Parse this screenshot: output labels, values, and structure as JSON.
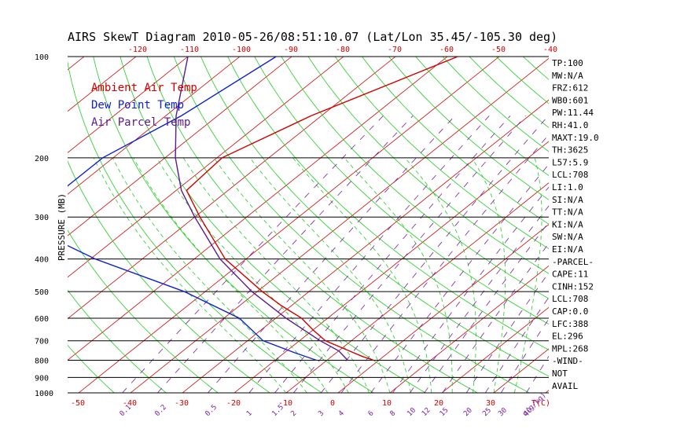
{
  "title": "AIRS SkewT Diagram 2010-05-26/08:51:10.07 (Lat/Lon 35.45/-105.30 deg)",
  "colors": {
    "ambient": "#d00000",
    "dewpoint": "#1020d0",
    "parcel": "#5a1a8a",
    "dry_adiabat": "#d00000",
    "moist_adiabat": "#22cc22",
    "mixing_ratio": "#7a1fa2",
    "isobar": "#000000"
  },
  "legend": [
    {
      "label": "Ambient Air Temp",
      "color": "#d00000"
    },
    {
      "label": "Dew Point Temp",
      "color": "#1020d0"
    },
    {
      "label": "Air Parcel Temp",
      "color": "#5a1a8a"
    }
  ],
  "indices": [
    "TP:100",
    "MW:N/A",
    "FRZ:612",
    "WB0:601",
    "PW:11.44",
    "RH:41.0",
    "MAXT:19.0",
    "TH:3625",
    "L57:5.9",
    "LCL:708",
    "LI:1.0",
    "SI:N/A",
    "TT:N/A",
    "KI:N/A",
    "SW:N/A",
    "EI:N/A",
    "-PARCEL-",
    "CAPE:11",
    "CINH:152",
    "LCL:708",
    "CAP:0.0",
    "LFC:388",
    "EL:296",
    "MPL:268",
    "-WIND-",
    "NOT",
    "AVAIL"
  ],
  "chart_data": {
    "type": "line",
    "title": "AIRS SkewT Diagram 2010-05-26/08:51:10.07 (Lat/Lon 35.45/-105.30 deg)",
    "ylabel": "PRESSURE (MB)",
    "y_scale": "log-pressure",
    "ylim": [
      1000,
      100
    ],
    "pressure_ticks": [
      "100",
      "200",
      "300",
      "400",
      "500",
      "600",
      "700",
      "800",
      "900",
      "1000"
    ],
    "pressure_values": [
      100,
      200,
      300,
      400,
      500,
      600,
      700,
      800,
      900,
      1000
    ],
    "top_temp_ticks": [
      "-120",
      "-110",
      "-100",
      "-90",
      "-80",
      "-70",
      "-60",
      "-50",
      "-40"
    ],
    "bottom_temp_ticks": [
      "-50",
      "-40",
      "-30",
      "-20",
      "-10",
      "0",
      "10",
      "20",
      "30",
      "T(C)"
    ],
    "mixing_ratio_ticks": [
      "0.1",
      "0.2",
      "0.5",
      "1",
      "1.5",
      "2",
      "3",
      "4",
      "6",
      "8",
      "10",
      "12",
      "15",
      "20",
      "25",
      "30",
      "40",
      "q(g/kg)"
    ],
    "series": [
      {
        "name": "Ambient Air Temp",
        "points": [
          [
            100,
            -58
          ],
          [
            150,
            -72
          ],
          [
            200,
            -79
          ],
          [
            250,
            -78
          ],
          [
            300,
            -69
          ],
          [
            400,
            -54
          ],
          [
            500,
            -39
          ],
          [
            550,
            -32
          ],
          [
            600,
            -25
          ],
          [
            650,
            -20
          ],
          [
            700,
            -15
          ],
          [
            750,
            -8
          ],
          [
            780,
            -4
          ],
          [
            800,
            -1
          ]
        ]
      },
      {
        "name": "Dew Point Temp",
        "points": [
          [
            100,
            -93
          ],
          [
            150,
            -97
          ],
          [
            200,
            -102
          ],
          [
            250,
            -102
          ],
          [
            300,
            -106
          ],
          [
            400,
            -79
          ],
          [
            500,
            -54
          ],
          [
            600,
            -37
          ],
          [
            700,
            -27
          ],
          [
            760,
            -18
          ],
          [
            800,
            -12
          ]
        ]
      },
      {
        "name": "Air Parcel Temp",
        "points": [
          [
            100,
            -110
          ],
          [
            150,
            -98
          ],
          [
            200,
            -88
          ],
          [
            250,
            -79
          ],
          [
            300,
            -70
          ],
          [
            400,
            -55
          ],
          [
            500,
            -41
          ],
          [
            600,
            -28
          ],
          [
            700,
            -16
          ],
          [
            750,
            -10
          ],
          [
            800,
            -6
          ]
        ]
      }
    ]
  }
}
